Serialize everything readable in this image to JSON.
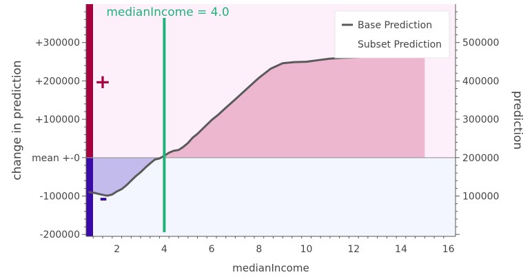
{
  "chart_data": {
    "type": "line",
    "title": "",
    "xlabel": "medianIncome",
    "ylabel_left": "change in prediction",
    "ylabel_right": "prediction",
    "xlim": [
      0.7,
      16.3
    ],
    "ylim_left": [
      -205000,
      400000
    ],
    "ylim_right": [
      -5000,
      600000
    ],
    "baseline": 200000,
    "x_ticks": [
      2,
      4,
      6,
      8,
      10,
      12,
      14,
      16
    ],
    "x_tick_labels": [
      "2",
      "4",
      "6",
      "8",
      "10",
      "12",
      "14",
      "16"
    ],
    "left_ticks": [
      300000,
      200000,
      100000,
      0,
      -100000,
      -200000
    ],
    "left_tick_labels": [
      "+300000",
      "+200000",
      "+100000",
      "mean +-0",
      "-100000",
      "-200000"
    ],
    "right_ticks": [
      500000,
      400000,
      300000,
      200000,
      100000
    ],
    "right_tick_labels": [
      "500000",
      "400000",
      "300000",
      "200000",
      "100000"
    ],
    "grid": false,
    "legend_position": "top-right",
    "legend": [
      "Base Prediction",
      "Subset Prediction"
    ],
    "series": [
      {
        "name": "Base Prediction",
        "color": "#5a5a5a",
        "x": [
          0.8,
          1.0,
          1.2,
          1.4,
          1.6,
          1.8,
          2.0,
          2.2,
          2.4,
          2.6,
          2.8,
          3.0,
          3.2,
          3.4,
          3.6,
          3.8,
          4.0,
          4.2,
          4.4,
          4.6,
          4.8,
          5.0,
          5.2,
          5.4,
          5.6,
          5.8,
          6.0,
          6.3,
          6.6,
          7.0,
          7.5,
          8.0,
          8.5,
          9.0,
          9.5,
          10.0,
          10.5,
          11.0,
          11.5,
          12.0,
          12.5,
          13.0,
          13.5,
          14.0,
          14.5,
          15.0
        ],
        "y": [
          110000,
          109000,
          106000,
          103000,
          101000,
          104000,
          112000,
          118000,
          128000,
          140000,
          152000,
          162000,
          174000,
          185000,
          195000,
          198000,
          205000,
          213000,
          218000,
          220000,
          228000,
          238000,
          252000,
          262000,
          274000,
          286000,
          298000,
          313000,
          330000,
          352000,
          380000,
          408000,
          432000,
          446000,
          449000,
          450000,
          454000,
          458000,
          460000,
          461000,
          462000,
          463000,
          463000,
          464000,
          464000,
          465000
        ]
      }
    ],
    "marker": {
      "label": "medianIncome = 4.0",
      "x": 4.0,
      "color": "#1fb27a"
    },
    "signs": {
      "plus": "+",
      "minus": "-"
    },
    "colors": {
      "positive_band": "#a8003e",
      "negative_band": "#3a0aa8",
      "positive_bg": "#fdf0fa",
      "negative_bg": "#f3f6fe",
      "positive_fill": "#ecb7cf",
      "negative_fill": "#c2bbeb",
      "plus_sign": "#a8003e",
      "minus_sign": "#3a0aa8"
    }
  }
}
